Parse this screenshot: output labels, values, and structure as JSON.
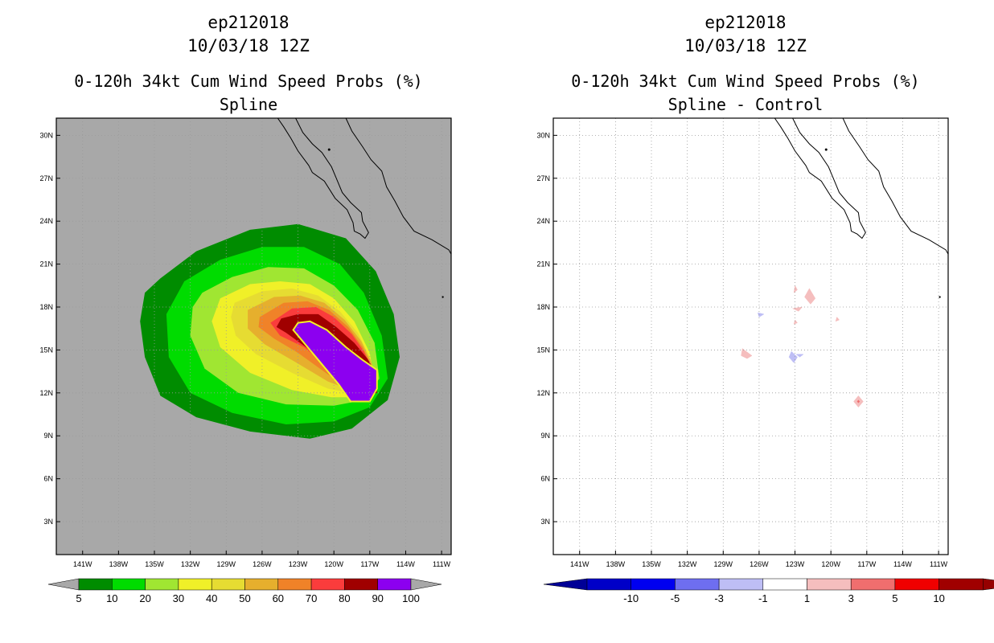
{
  "panels": [
    {
      "storm_id": "ep212018",
      "datetime": "10/03/18 12Z",
      "title": "0-120h 34kt Cum Wind Speed Probs (%)",
      "subtitle": "Spline"
    },
    {
      "storm_id": "ep212018",
      "datetime": "10/03/18 12Z",
      "title": "0-120h 34kt Cum Wind Speed Probs (%)",
      "subtitle": "Spline - Control"
    }
  ],
  "chart_data": [
    {
      "type": "heatmap",
      "title": "0-120h 34kt Cum Wind Speed Probs (%)",
      "subtitle": "Spline",
      "background_color": "#a8a8a8",
      "grid": true,
      "lon_range": [
        -143.2,
        -110.2
      ],
      "lat_range": [
        0.7,
        31.2
      ],
      "x_ticks": [
        -141,
        -138,
        -135,
        -132,
        -129,
        -126,
        -123,
        -120,
        -117,
        -114,
        -111
      ],
      "x_tick_labels": [
        "141W",
        "138W",
        "135W",
        "132W",
        "129W",
        "126W",
        "123W",
        "120W",
        "117W",
        "114W",
        "111W"
      ],
      "y_ticks": [
        3,
        6,
        9,
        12,
        15,
        18,
        21,
        24,
        27,
        30
      ],
      "y_tick_labels": [
        "3N",
        "6N",
        "9N",
        "12N",
        "15N",
        "18N",
        "21N",
        "24N",
        "27N",
        "30N"
      ],
      "colorbar": {
        "labels": [
          "5",
          "10",
          "20",
          "30",
          "40",
          "50",
          "60",
          "70",
          "80",
          "90",
          "100"
        ],
        "colors": [
          "#008c00",
          "#00dc00",
          "#a0e632",
          "#f0f028",
          "#e6dc32",
          "#e6af2d",
          "#f08228",
          "#fa3c3c",
          "#a00000",
          "#8c00f0"
        ],
        "end_color": "#a8a8a8"
      },
      "contours": [
        {
          "level": 5,
          "color": "#008c00",
          "outline": [
            [
              -134.5,
              20.0
            ],
            [
              -131.5,
              21.9
            ],
            [
              -127.0,
              23.4
            ],
            [
              -123.0,
              23.8
            ],
            [
              -119.0,
              22.8
            ],
            [
              -116.5,
              20.5
            ],
            [
              -115.0,
              17.5
            ],
            [
              -114.5,
              14.5
            ],
            [
              -115.5,
              11.5
            ],
            [
              -118.5,
              9.5
            ],
            [
              -122.0,
              8.8
            ],
            [
              -127.0,
              9.3
            ],
            [
              -131.5,
              10.3
            ],
            [
              -134.5,
              11.8
            ],
            [
              -135.8,
              14.5
            ],
            [
              -136.2,
              17.0
            ],
            [
              -135.8,
              19.0
            ]
          ]
        },
        {
          "level": 10,
          "color": "#00dc00",
          "outline": [
            [
              -132.5,
              19.8
            ],
            [
              -129.5,
              21.3
            ],
            [
              -126.0,
              22.2
            ],
            [
              -122.5,
              22.2
            ],
            [
              -119.5,
              21.0
            ],
            [
              -117.5,
              19.0
            ],
            [
              -116.0,
              16.0
            ],
            [
              -115.5,
              13.0
            ],
            [
              -117.0,
              11.0
            ],
            [
              -120.0,
              10.0
            ],
            [
              -124.0,
              9.8
            ],
            [
              -128.5,
              10.6
            ],
            [
              -132.0,
              12.0
            ],
            [
              -133.8,
              14.5
            ],
            [
              -134.0,
              17.5
            ]
          ]
        },
        {
          "level": 20,
          "color": "#a0e632",
          "outline": [
            [
              -131.0,
              19.0
            ],
            [
              -128.5,
              20.1
            ],
            [
              -125.5,
              20.8
            ],
            [
              -122.5,
              20.7
            ],
            [
              -120.0,
              19.5
            ],
            [
              -118.0,
              17.8
            ],
            [
              -116.6,
              15.5
            ],
            [
              -116.2,
              13.0
            ],
            [
              -117.5,
              11.5
            ],
            [
              -120.0,
              11.1
            ],
            [
              -124.0,
              11.2
            ],
            [
              -128.0,
              12.0
            ],
            [
              -130.8,
              13.7
            ],
            [
              -132.0,
              16.0
            ],
            [
              -131.8,
              18.0
            ]
          ]
        },
        {
          "level": 30,
          "color": "#f0f028",
          "outline": [
            [
              -129.5,
              18.6
            ],
            [
              -127.0,
              19.6
            ],
            [
              -124.5,
              19.8
            ],
            [
              -122.0,
              19.6
            ],
            [
              -120.0,
              18.6
            ],
            [
              -118.3,
              17.0
            ],
            [
              -117.0,
              14.8
            ],
            [
              -116.6,
              12.8
            ],
            [
              -117.8,
              11.7
            ],
            [
              -120.2,
              11.7
            ],
            [
              -123.5,
              12.2
            ],
            [
              -127.0,
              13.4
            ],
            [
              -129.5,
              15.2
            ],
            [
              -130.2,
              17.0
            ]
          ]
        },
        {
          "level": 40,
          "color": "#e6dc32",
          "outline": [
            [
              -128.3,
              18.3
            ],
            [
              -126.0,
              19.1
            ],
            [
              -123.5,
              19.3
            ],
            [
              -121.3,
              18.8
            ],
            [
              -119.5,
              17.7
            ],
            [
              -118.0,
              16.2
            ],
            [
              -116.9,
              14.3
            ],
            [
              -116.6,
              12.5
            ],
            [
              -118.0,
              11.9
            ],
            [
              -120.5,
              12.3
            ],
            [
              -123.5,
              13.4
            ],
            [
              -126.5,
              14.7
            ],
            [
              -128.2,
              16.0
            ],
            [
              -128.6,
              17.3
            ]
          ]
        },
        {
          "level": 50,
          "color": "#e6af2d",
          "outline": [
            [
              -127.2,
              17.8
            ],
            [
              -125.0,
              18.7
            ],
            [
              -122.8,
              18.8
            ],
            [
              -120.8,
              18.3
            ],
            [
              -119.1,
              17.1
            ],
            [
              -117.7,
              15.6
            ],
            [
              -116.8,
              14.0
            ],
            [
              -116.6,
              12.4
            ],
            [
              -118.0,
              12.0
            ],
            [
              -120.5,
              12.8
            ],
            [
              -123.3,
              14.2
            ],
            [
              -125.8,
              15.4
            ],
            [
              -127.2,
              16.5
            ]
          ]
        },
        {
          "level": 60,
          "color": "#f08228",
          "outline": [
            [
              -126.2,
              17.3
            ],
            [
              -124.2,
              18.3
            ],
            [
              -122.2,
              18.4
            ],
            [
              -120.4,
              17.8
            ],
            [
              -118.8,
              16.6
            ],
            [
              -117.6,
              15.2
            ],
            [
              -116.8,
              13.8
            ],
            [
              -116.6,
              12.3
            ],
            [
              -118.0,
              12.1
            ],
            [
              -120.5,
              13.3
            ],
            [
              -123.0,
              14.8
            ],
            [
              -125.0,
              15.8
            ],
            [
              -126.3,
              16.6
            ]
          ]
        },
        {
          "level": 70,
          "color": "#fa3c3c",
          "outline": [
            [
              -125.3,
              16.9
            ],
            [
              -123.5,
              17.9
            ],
            [
              -121.5,
              18.0
            ],
            [
              -120.0,
              17.3
            ],
            [
              -118.5,
              16.1
            ],
            [
              -117.5,
              14.9
            ],
            [
              -116.7,
              13.5
            ],
            [
              -116.4,
              12.2
            ],
            [
              -117.8,
              12.0
            ],
            [
              -120.0,
              13.5
            ],
            [
              -122.5,
              15.2
            ],
            [
              -124.5,
              16.0
            ]
          ]
        },
        {
          "level": 80,
          "color": "#a00000",
          "outline": [
            [
              -124.8,
              16.6
            ],
            [
              -124.4,
              17.2
            ],
            [
              -123.0,
              17.5
            ],
            [
              -121.3,
              17.5
            ],
            [
              -119.8,
              16.6
            ],
            [
              -118.3,
              15.5
            ],
            [
              -117.2,
              14.4
            ],
            [
              -116.5,
              13.4
            ],
            [
              -116.4,
              12.0
            ],
            [
              -117.8,
              11.6
            ],
            [
              -119.8,
              13.4
            ],
            [
              -122.0,
              15.0
            ],
            [
              -124.0,
              16.2
            ]
          ]
        },
        {
          "level": 90,
          "color": "#8c00f0",
          "outline": [
            [
              -123.0,
              16.9
            ],
            [
              -122.0,
              17.0
            ],
            [
              -120.6,
              16.4
            ],
            [
              -119.0,
              15.2
            ],
            [
              -117.6,
              14.3
            ],
            [
              -116.4,
              13.6
            ],
            [
              -116.4,
              12.3
            ],
            [
              -117.0,
              11.4
            ],
            [
              -118.6,
              11.4
            ],
            [
              -119.6,
              12.6
            ],
            [
              -121.0,
              14.0
            ],
            [
              -122.6,
              15.6
            ],
            [
              -123.4,
              16.4
            ]
          ]
        }
      ]
    },
    {
      "type": "heatmap",
      "title": "0-120h 34kt Cum Wind Speed Probs (%)",
      "subtitle": "Spline - Control",
      "background_color": "#ffffff",
      "grid": true,
      "lon_range": [
        -143.2,
        -110.2
      ],
      "lat_range": [
        0.7,
        31.2
      ],
      "x_ticks": [
        -141,
        -138,
        -135,
        -132,
        -129,
        -126,
        -123,
        -120,
        -117,
        -114,
        -111
      ],
      "x_tick_labels": [
        "141W",
        "138W",
        "135W",
        "132W",
        "129W",
        "126W",
        "123W",
        "120W",
        "117W",
        "114W",
        "111W"
      ],
      "y_ticks": [
        3,
        6,
        9,
        12,
        15,
        18,
        21,
        24,
        27,
        30
      ],
      "y_tick_labels": [
        "3N",
        "6N",
        "9N",
        "12N",
        "15N",
        "18N",
        "21N",
        "24N",
        "27N",
        "30N"
      ],
      "colorbar": {
        "labels": [
          "-10",
          "-5",
          "-3",
          "-1",
          "1",
          "3",
          "5",
          "10"
        ],
        "colors": [
          "#0000c8",
          "#0000f0",
          "#6e6ef0",
          "#bebef5",
          "#ffffff",
          "#f5bebe",
          "#f06e6e",
          "#f00000",
          "#a00000"
        ],
        "low_end_color": "#000096",
        "high_end_color": "#960000"
      },
      "anomalies": [
        {
          "color": "#f5bebe",
          "outline": [
            [
              -122.2,
              18.7
            ],
            [
              -121.8,
              19.3
            ],
            [
              -121.3,
              18.6
            ],
            [
              -121.7,
              18.2
            ]
          ]
        },
        {
          "color": "#f5bebe",
          "outline": [
            [
              -123.2,
              17.9
            ],
            [
              -122.4,
              18.0
            ],
            [
              -122.7,
              17.7
            ]
          ]
        },
        {
          "color": "#f5bebe",
          "outline": [
            [
              -123.0,
              19.5
            ],
            [
              -122.8,
              19.2
            ],
            [
              -123.1,
              19.0
            ]
          ]
        },
        {
          "color": "#bebef5",
          "outline": [
            [
              -126.1,
              17.6
            ],
            [
              -125.6,
              17.5
            ],
            [
              -126.0,
              17.3
            ]
          ]
        },
        {
          "color": "#f5bebe",
          "outline": [
            [
              -127.4,
              15.1
            ],
            [
              -126.6,
              14.6
            ],
            [
              -127.0,
              14.4
            ],
            [
              -127.5,
              14.6
            ]
          ]
        },
        {
          "color": "#bebef5",
          "outline": [
            [
              -123.3,
              14.9
            ],
            [
              -122.8,
              14.5
            ],
            [
              -123.1,
              14.1
            ],
            [
              -123.5,
              14.5
            ]
          ]
        },
        {
          "color": "#bebef5",
          "outline": [
            [
              -122.9,
              14.7
            ],
            [
              -122.3,
              14.7
            ],
            [
              -122.6,
              14.5
            ]
          ]
        },
        {
          "color": "#f5bebe",
          "outline": [
            [
              -123.0,
              17.1
            ],
            [
              -122.8,
              16.9
            ],
            [
              -123.1,
              16.8
            ]
          ]
        },
        {
          "color": "#f5bebe",
          "outline": [
            [
              -119.5,
              17.3
            ],
            [
              -119.3,
              17.1
            ],
            [
              -119.6,
              17.0
            ]
          ]
        },
        {
          "color": "#f5bebe",
          "outline": [
            [
              -117.7,
              11.8
            ],
            [
              -117.3,
              11.4
            ],
            [
              -117.7,
              11.0
            ],
            [
              -118.1,
              11.4
            ]
          ]
        },
        {
          "color": "#f06e6e",
          "outline": [
            [
              -117.7,
              11.5
            ],
            [
              -117.6,
              11.4
            ],
            [
              -117.7,
              11.3
            ],
            [
              -117.8,
              11.4
            ]
          ]
        }
      ]
    }
  ]
}
